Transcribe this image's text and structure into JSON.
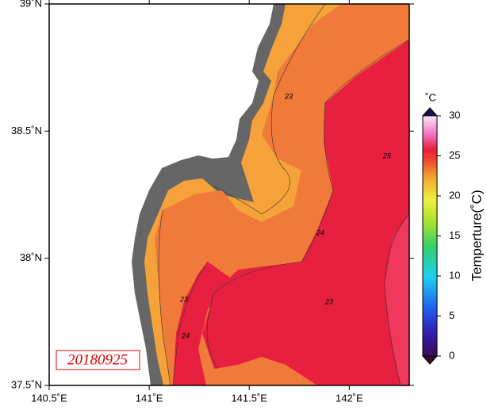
{
  "map": {
    "lon_ticks": [
      {
        "value": 140.5,
        "label": "140.5˚E"
      },
      {
        "value": 141,
        "label": "141˚E"
      },
      {
        "value": 141.5,
        "label": "141.5˚E"
      },
      {
        "value": 142,
        "label": "142˚E"
      }
    ],
    "lat_ticks": [
      {
        "value": 39,
        "label": "39˚N"
      },
      {
        "value": 38.5,
        "label": "38.5˚N"
      },
      {
        "value": 38,
        "label": "38˚N"
      },
      {
        "value": 37.5,
        "label": "37.5˚N"
      }
    ],
    "lonlim": [
      140.5,
      142.3
    ],
    "latlim": [
      37.5,
      39
    ],
    "date": "20180925",
    "contour_labels": [
      23,
      23,
      23,
      24,
      24,
      25
    ],
    "colorbar": {
      "unit": "˚C",
      "title": "Temperture(˚C)",
      "lim": [
        0,
        30
      ],
      "ticks": [
        0,
        5,
        10,
        15,
        20,
        25,
        30
      ]
    }
  }
}
